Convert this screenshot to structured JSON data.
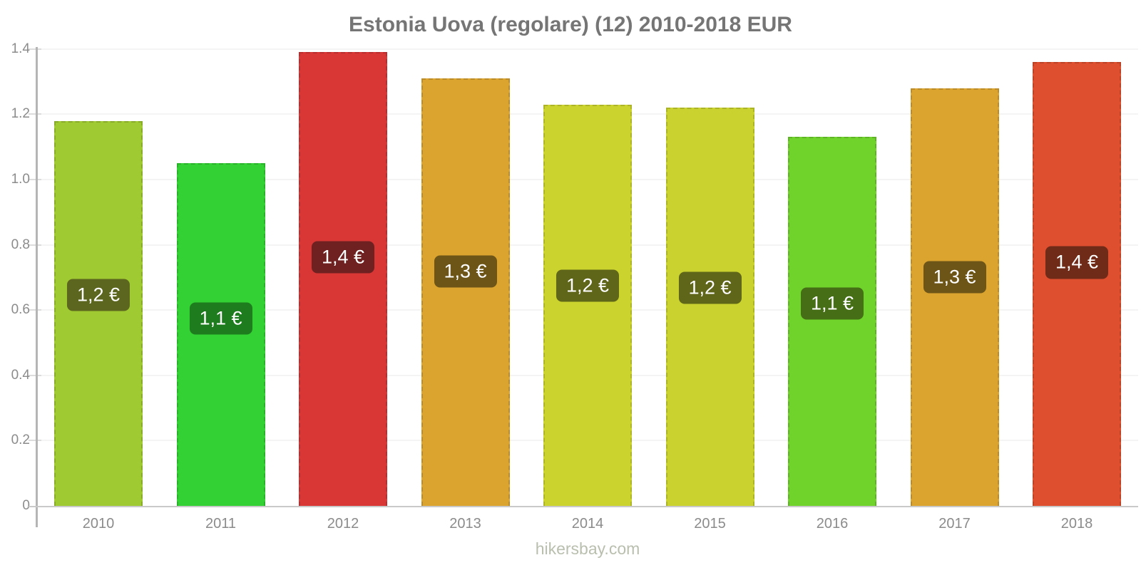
{
  "title": "Estonia Uova (regolare) (12) 2010-2018 EUR",
  "footer": "hikersbay.com",
  "chart_data": {
    "type": "bar",
    "title": "Estonia Uova (regolare) (12) 2010-2018 EUR",
    "categories": [
      "2010",
      "2011",
      "2012",
      "2013",
      "2014",
      "2015",
      "2016",
      "2017",
      "2018"
    ],
    "values": [
      1.18,
      1.05,
      1.39,
      1.31,
      1.23,
      1.22,
      1.13,
      1.28,
      1.36
    ],
    "bar_labels": [
      "1,2 €",
      "1,1 €",
      "1,4 €",
      "1,3 €",
      "1,2 €",
      "1,2 €",
      "1,1 €",
      "1,3 €",
      "1,4 €"
    ],
    "bar_colors": [
      "#a0ca32",
      "#33d133",
      "#d93636",
      "#dba42f",
      "#cbd32e",
      "#c9d22e",
      "#6fd32b",
      "#dba42f",
      "#dd4f2e"
    ],
    "badge_colors": [
      "#5c661e",
      "#1e7c1e",
      "#6f2121",
      "#6d5518",
      "#5f661a",
      "#5f661a",
      "#456e16",
      "#6d5518",
      "#6f2a18"
    ],
    "xlabel": "",
    "ylabel": "",
    "ylim": [
      0,
      1.4
    ],
    "yticks": [
      0,
      0.2,
      0.4,
      0.6,
      0.8,
      1.0,
      1.2,
      1.4
    ],
    "ytick_labels": [
      "0",
      "0.2",
      "0.4",
      "0.6",
      "0.8",
      "1.0",
      "1.2",
      "1.4"
    ],
    "grid": true,
    "legend_position": "none",
    "currency": "EUR"
  },
  "colors": {
    "title_text": "#757575",
    "tick_label_text": "#8b8b8b",
    "footer_text": "#b9bfae",
    "axis_line": "#b5b5b5",
    "baseline": "#c9c9c9",
    "tick_mark": "#dcdcdc",
    "gridline": "#f4f4f4",
    "badge_text": "#ffffff",
    "background": "#ffffff"
  }
}
